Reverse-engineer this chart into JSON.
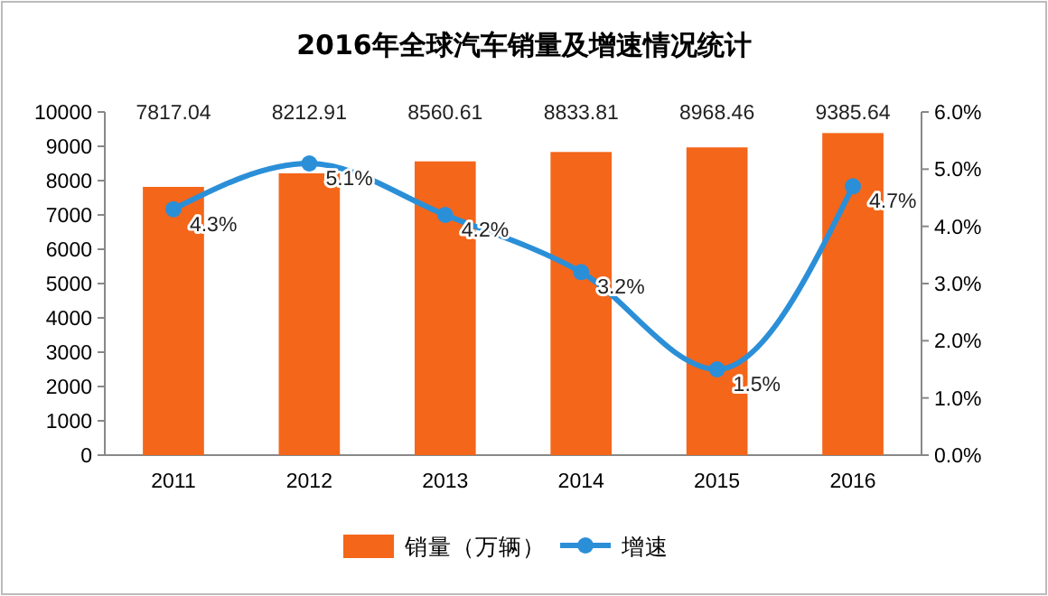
{
  "chart_data": {
    "type": "bar",
    "title": "2016年全球汽车销量及增速情况统计",
    "categories": [
      "2011",
      "2012",
      "2013",
      "2014",
      "2015",
      "2016"
    ],
    "series": [
      {
        "name": "销量（万辆）",
        "color": "#f4661a",
        "values": [
          7817.04,
          8212.91,
          8560.61,
          8833.81,
          8968.46,
          9385.64
        ],
        "value_labels": [
          "7817.04",
          "8212.91",
          "8560.61",
          "8833.81",
          "8968.46",
          "9385.64"
        ]
      },
      {
        "name": "增速",
        "type": "line",
        "axis": "y2",
        "color": "#2b8fd8",
        "values": [
          4.3,
          5.1,
          4.2,
          3.2,
          1.5,
          4.7
        ],
        "value_labels": [
          "4.3%",
          "5.1%",
          "4.2%",
          "3.2%",
          "1.5%",
          "4.7%"
        ]
      }
    ],
    "ylim": [
      0,
      10000
    ],
    "yticks": [
      0,
      1000,
      2000,
      3000,
      4000,
      5000,
      6000,
      7000,
      8000,
      9000,
      10000
    ],
    "y2lim": [
      0,
      6
    ],
    "y2ticks": [
      {
        "value": 0,
        "label": "0.0%"
      },
      {
        "value": 1,
        "label": "1.0%"
      },
      {
        "value": 2,
        "label": "2.0%"
      },
      {
        "value": 3,
        "label": "3.0%"
      },
      {
        "value": 4,
        "label": "4.0%"
      },
      {
        "value": 5,
        "label": "5.0%"
      },
      {
        "value": 6,
        "label": "6.0%"
      }
    ],
    "legend": "bottom",
    "marker": "circle",
    "line_style": "solid"
  }
}
